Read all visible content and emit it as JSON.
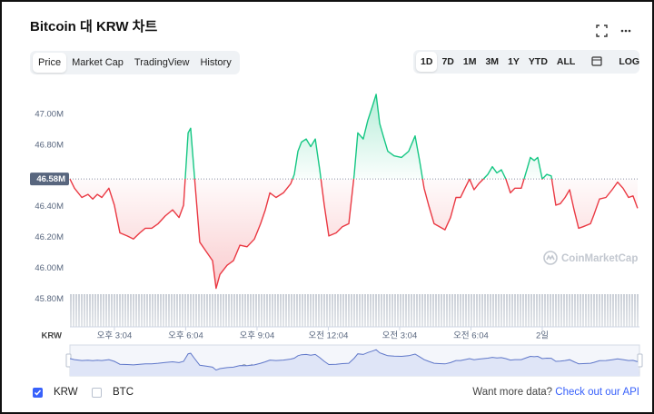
{
  "header": {
    "title": "Bitcoin 대 KRW 차트"
  },
  "tabs": [
    {
      "label": "Price",
      "active": true
    },
    {
      "label": "Market Cap",
      "active": false
    },
    {
      "label": "TradingView",
      "active": false
    },
    {
      "label": "History",
      "active": false
    }
  ],
  "ranges": [
    {
      "label": "1D",
      "active": true
    },
    {
      "label": "7D",
      "active": false
    },
    {
      "label": "1M",
      "active": false
    },
    {
      "label": "3M",
      "active": false
    },
    {
      "label": "1Y",
      "active": false
    },
    {
      "label": "YTD",
      "active": false
    },
    {
      "label": "ALL",
      "active": false
    }
  ],
  "log_label": "LOG",
  "chart_data": {
    "type": "line",
    "axis_unit": "KRW",
    "watermark": "CoinMarketCap",
    "up_color": "#16c784",
    "down_color": "#ea3943",
    "reference": {
      "value": 46.58,
      "label": "46.58M"
    },
    "xlim": [
      13.2,
      37.16
    ],
    "ylim": [
      45.62,
      47.2
    ],
    "xticks": [
      {
        "value": 15.07,
        "label": "오후 3:04"
      },
      {
        "value": 18.07,
        "label": "오후 6:04"
      },
      {
        "value": 21.07,
        "label": "오후 9:04"
      },
      {
        "value": 24.07,
        "label": "오전 12:04"
      },
      {
        "value": 27.07,
        "label": "오전 3:04"
      },
      {
        "value": 30.07,
        "label": "오전 6:04"
      },
      {
        "value": 33.07,
        "label": "2일"
      }
    ],
    "yticks": [
      {
        "value": 45.8,
        "label": "45.80M"
      },
      {
        "value": 46,
        "label": "46.00M"
      },
      {
        "value": 46.2,
        "label": "46.20M"
      },
      {
        "value": 46.4,
        "label": "46.40M"
      },
      {
        "value": 46.8,
        "label": "46.80M"
      },
      {
        "value": 47,
        "label": "47.00M"
      }
    ],
    "x": [
      13.2,
      13.39,
      13.7,
      13.96,
      14.16,
      14.35,
      14.54,
      14.84,
      15.07,
      15.3,
      15.61,
      15.87,
      16.14,
      16.37,
      16.64,
      16.91,
      17.21,
      17.52,
      17.79,
      17.98,
      18.17,
      18.28,
      18.43,
      18.66,
      18.93,
      19.2,
      19.35,
      19.51,
      19.81,
      20.08,
      20.35,
      20.65,
      20.96,
      21.22,
      21.42,
      21.61,
      21.87,
      22.18,
      22.49,
      22.64,
      22.79,
      22.94,
      23.14,
      23.33,
      23.52,
      23.71,
      23.9,
      24.09,
      24.4,
      24.66,
      24.93,
      25.16,
      25.31,
      25.54,
      25.73,
      25.92,
      26.08,
      26.23,
      26.38,
      26.57,
      26.84,
      27.15,
      27.45,
      27.72,
      27.91,
      28.1,
      28.29,
      28.52,
      28.75,
      28.98,
      29.21,
      29.44,
      29.63,
      29.82,
      30.01,
      30.2,
      30.4,
      30.59,
      30.78,
      30.97,
      31.16,
      31.35,
      31.54,
      31.73,
      31.92,
      32.19,
      32.42,
      32.57,
      32.73,
      32.88,
      33.07,
      33.26,
      33.45,
      33.64,
      33.83,
      34.03,
      34.22,
      34.41,
      34.6,
      34.79,
      35.1,
      35.25,
      35.48,
      35.75,
      36.01,
      36.24,
      36.47,
      36.7,
      36.89,
      37.08
    ],
    "values": [
      46.58,
      46.52,
      46.46,
      46.48,
      46.45,
      46.48,
      46.46,
      46.52,
      46.41,
      46.23,
      46.21,
      46.19,
      46.23,
      46.26,
      46.26,
      46.29,
      46.34,
      46.38,
      46.33,
      46.41,
      46.88,
      46.91,
      46.61,
      46.17,
      46.11,
      46.05,
      45.87,
      45.96,
      46.02,
      46.05,
      46.15,
      46.14,
      46.19,
      46.29,
      46.38,
      46.49,
      46.46,
      46.49,
      46.55,
      46.61,
      46.76,
      46.82,
      46.84,
      46.79,
      46.84,
      46.64,
      46.41,
      46.21,
      46.23,
      46.27,
      46.29,
      46.61,
      46.88,
      46.84,
      46.96,
      47.05,
      47.13,
      46.94,
      46.86,
      46.76,
      46.73,
      46.72,
      46.76,
      46.86,
      46.7,
      46.52,
      46.41,
      46.29,
      46.27,
      46.25,
      46.33,
      46.46,
      46.46,
      46.52,
      46.58,
      46.51,
      46.55,
      46.58,
      46.61,
      46.66,
      46.62,
      46.64,
      46.58,
      46.49,
      46.52,
      46.52,
      46.64,
      46.72,
      46.7,
      46.72,
      46.58,
      46.61,
      46.6,
      46.41,
      46.42,
      46.46,
      46.51,
      46.38,
      46.26,
      46.27,
      46.29,
      46.35,
      46.45,
      46.46,
      46.51,
      46.56,
      46.52,
      46.46,
      46.47,
      46.39
    ]
  },
  "legend": [
    {
      "label": "KRW",
      "checked": true
    },
    {
      "label": "BTC",
      "checked": false
    }
  ],
  "footer": {
    "text": "Want more data?",
    "link": "Check out our API"
  }
}
